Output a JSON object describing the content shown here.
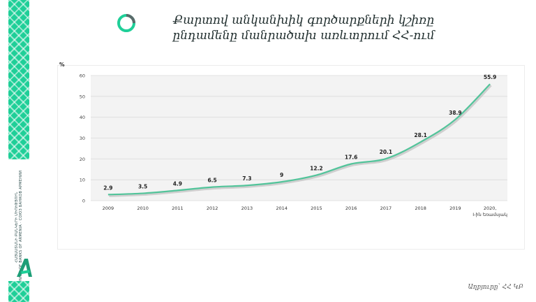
{
  "title": "Քարտով անկանխիկ գործարքների կշիռը ընդամենը մանրածախ առևտրում ՀՀ-ում",
  "sidebar": {
    "org_line_1": "ՀԱՅԱՍՏԱՆԻ ԲԱՆԿԵՐԻ ՄԻՈՒԹՅՈՒՆ",
    "org_line_2": "UNION OF BANKS OF ARMENIA · СОЮЗ БАНКОВ АРМЕНИИ"
  },
  "source": "Աղբյուրը՝ ՀՀ ԿԲ",
  "colors": {
    "line": "#52c49a",
    "grid": "#dcdcdc",
    "plot_bg": "#f3f3f3",
    "brand": "#1fcf98"
  },
  "chart_data": {
    "type": "line",
    "ylabel": "%",
    "ylim": [
      0,
      60
    ],
    "yticks": [
      0,
      10,
      20,
      30,
      40,
      50,
      60
    ],
    "categories": [
      "2009",
      "2010",
      "2011",
      "2012",
      "2013",
      "2014",
      "2015",
      "2016",
      "2017",
      "2018",
      "2019",
      "2020, I-ին եռամսյակ"
    ],
    "values": [
      2.9,
      3.5,
      4.9,
      6.5,
      7.3,
      9,
      12.2,
      17.6,
      20.1,
      28.1,
      38.9,
      55.9
    ],
    "value_labels": [
      "2.9",
      "3.5",
      "4.9",
      "6.5",
      "7.3",
      "9",
      "12.2",
      "17.6",
      "20.1",
      "28.1",
      "38.9",
      "55.9"
    ],
    "grid": true,
    "legend": "none"
  }
}
